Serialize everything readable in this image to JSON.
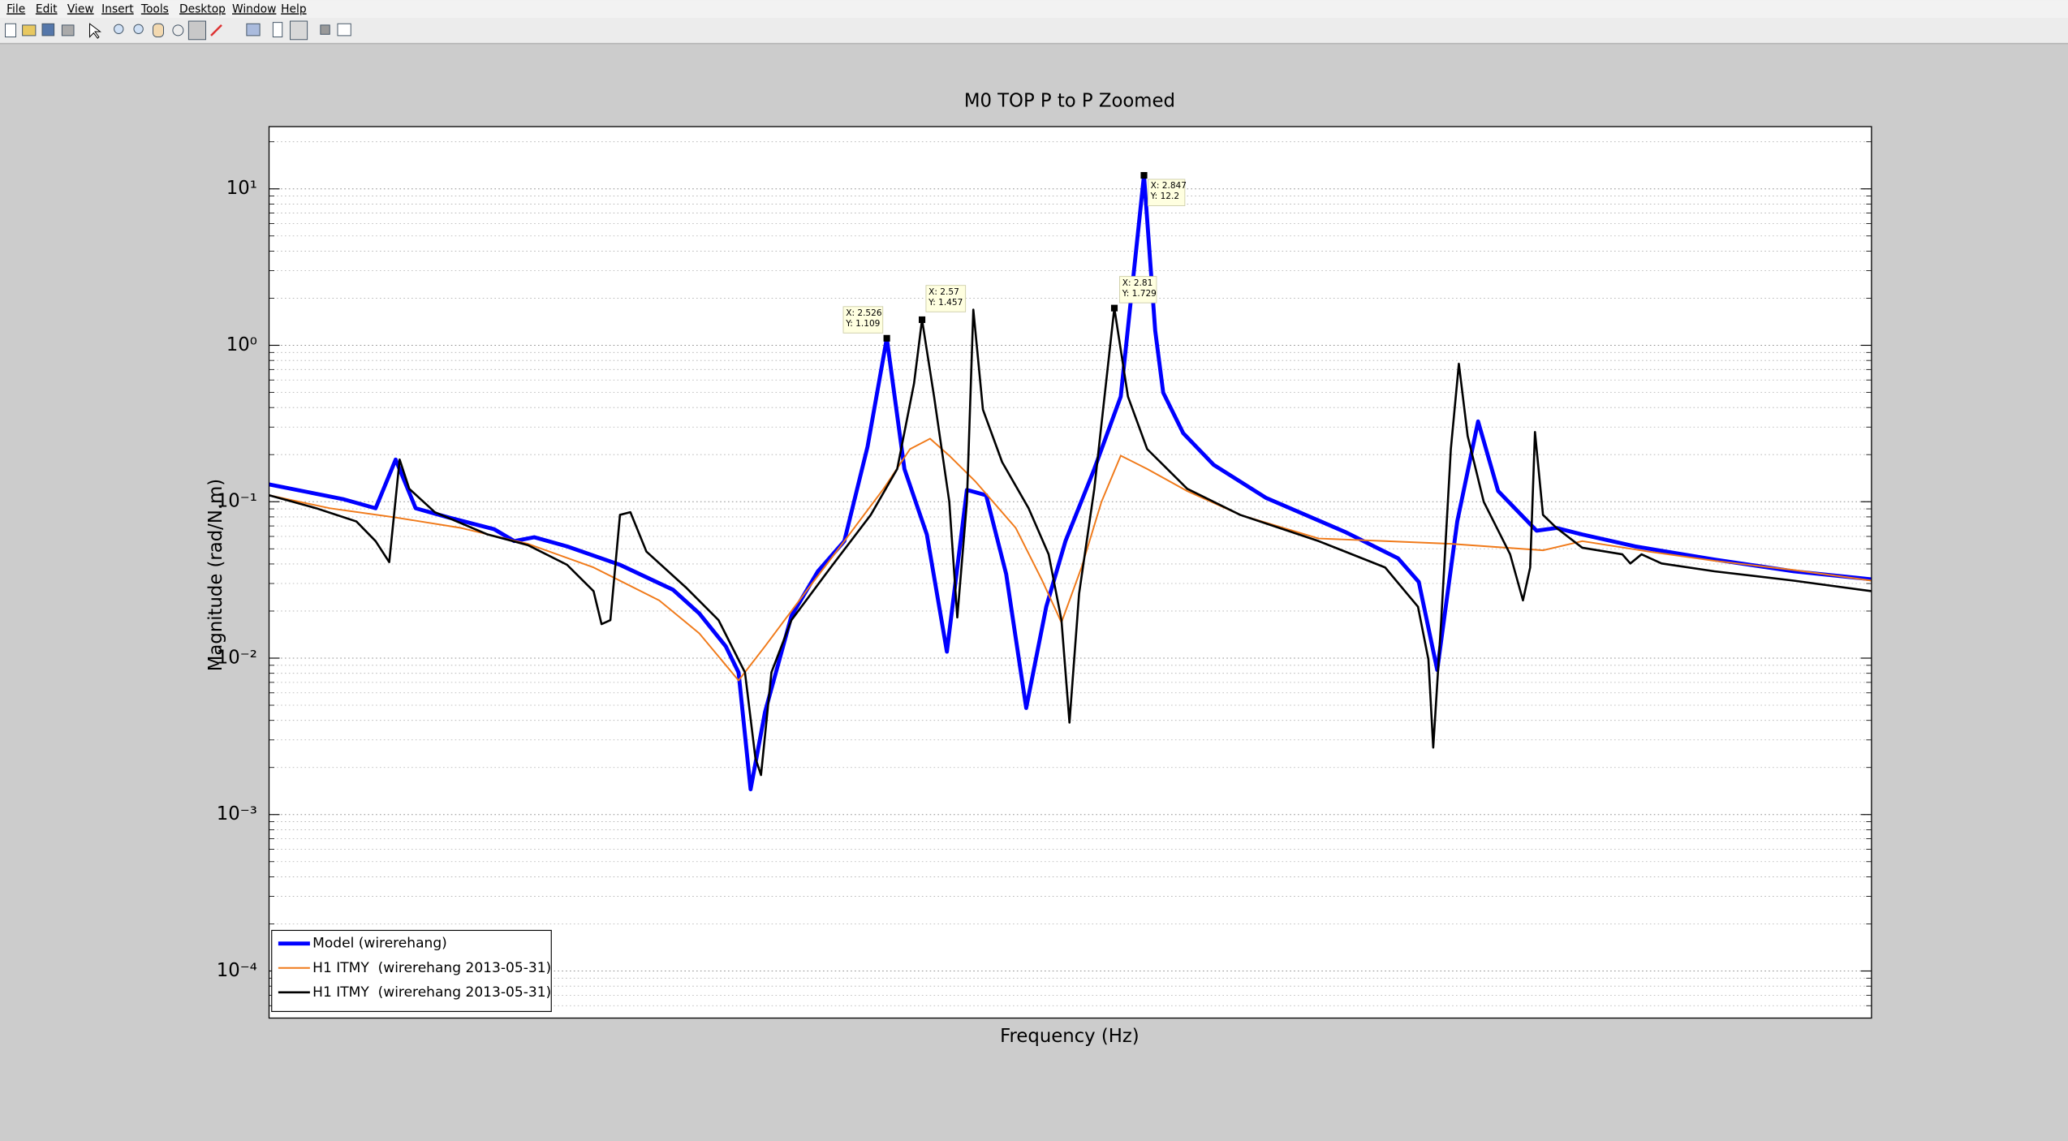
{
  "menu": [
    "File",
    "Edit",
    "View",
    "Insert",
    "Tools",
    "Desktop",
    "Window",
    "Help"
  ],
  "chart_data": {
    "type": "line",
    "title": "M0 TOP P to P Zoomed",
    "xlabel": "Frequency (Hz)",
    "ylabel": "Magnitude (rad/N.m)",
    "xlim": [
      1.755,
      3.755
    ],
    "ylim": [
      5e-05,
      25
    ],
    "ylog": true,
    "grid": true,
    "minor_grid": true,
    "legend": "lower left",
    "yticks": [
      {
        "value": 10,
        "label": "10¹"
      },
      {
        "value": 1,
        "label": "10⁰"
      },
      {
        "value": 0.1,
        "label": "10⁻¹"
      },
      {
        "value": 0.01,
        "label": "10⁻²"
      },
      {
        "value": 0.001,
        "label": "10⁻³"
      },
      {
        "value": 0.0001,
        "label": "10⁻⁴"
      }
    ],
    "series": [
      {
        "name": "Model (wirerehang)",
        "color": "#0000ff",
        "width": 3,
        "x": [
          1.755,
          1.847,
          1.888,
          1.913,
          1.938,
          1.979,
          2.036,
          2.061,
          2.086,
          2.127,
          2.193,
          2.259,
          2.292,
          2.325,
          2.341,
          2.356,
          2.374,
          2.407,
          2.44,
          2.473,
          2.502,
          2.526,
          2.548,
          2.576,
          2.601,
          2.626,
          2.65,
          2.675,
          2.7,
          2.725,
          2.749,
          2.785,
          2.818,
          2.847,
          2.861,
          2.871,
          2.896,
          2.934,
          2.999,
          3.098,
          3.164,
          3.19,
          3.213,
          3.238,
          3.264,
          3.289,
          3.337,
          3.362,
          3.394,
          3.46,
          3.559,
          3.658,
          3.755
        ],
        "values": [
          0.129,
          0.104,
          0.0908,
          0.186,
          0.0908,
          0.0793,
          0.0667,
          0.056,
          0.0593,
          0.0518,
          0.0395,
          0.0274,
          0.0193,
          0.0119,
          0.0081,
          0.00145,
          0.00452,
          0.0186,
          0.0359,
          0.056,
          0.225,
          1.109,
          0.162,
          0.0617,
          0.011,
          0.119,
          0.11,
          0.0345,
          0.0048,
          0.0213,
          0.056,
          0.162,
          0.47,
          12.2,
          1.24,
          0.498,
          0.274,
          0.172,
          0.106,
          0.0641,
          0.0435,
          0.0307,
          0.0084,
          0.0748,
          0.326,
          0.117,
          0.0653,
          0.0679,
          0.0617,
          0.0518,
          0.0427,
          0.0359,
          0.0319
        ]
      },
      {
        "name": "H1 ITMY  (wirerehang 2013-05-31)",
        "color": "#f07a1a",
        "width": 1.2,
        "x": [
          1.755,
          1.831,
          1.913,
          1.995,
          2.078,
          2.16,
          2.242,
          2.292,
          2.341,
          2.374,
          2.423,
          2.473,
          2.522,
          2.555,
          2.58,
          2.604,
          2.637,
          2.687,
          2.72,
          2.744,
          2.769,
          2.794,
          2.818,
          2.851,
          2.901,
          2.967,
          3.065,
          3.148,
          3.23,
          3.345,
          3.394,
          3.477,
          3.559,
          3.658,
          3.755
        ],
        "values": [
          0.11,
          0.0908,
          0.0793,
          0.0679,
          0.0538,
          0.038,
          0.0234,
          0.0144,
          0.0072,
          0.0119,
          0.0258,
          0.056,
          0.121,
          0.217,
          0.253,
          0.197,
          0.134,
          0.0679,
          0.0313,
          0.0169,
          0.038,
          0.1,
          0.197,
          0.162,
          0.117,
          0.0824,
          0.0582,
          0.056,
          0.0538,
          0.0489,
          0.056,
          0.048,
          0.0419,
          0.0366,
          0.0313
        ]
      },
      {
        "name": "H1 ITMY  (wirerehang 2013-05-31)",
        "color": "#000000",
        "width": 1.6,
        "x": [
          1.755,
          1.814,
          1.864,
          1.888,
          1.905,
          1.918,
          1.93,
          1.962,
          2.028,
          2.078,
          2.127,
          2.16,
          2.17,
          2.181,
          2.193,
          2.206,
          2.226,
          2.275,
          2.316,
          2.349,
          2.362,
          2.369,
          2.382,
          2.407,
          2.456,
          2.506,
          2.539,
          2.56,
          2.57,
          2.585,
          2.604,
          2.614,
          2.626,
          2.634,
          2.646,
          2.67,
          2.703,
          2.728,
          2.744,
          2.754,
          2.766,
          2.785,
          2.81,
          2.827,
          2.851,
          2.901,
          2.967,
          3.065,
          3.148,
          3.189,
          3.202,
          3.208,
          3.218,
          3.23,
          3.24,
          3.251,
          3.271,
          3.304,
          3.32,
          3.329,
          3.335,
          3.345,
          3.362,
          3.394,
          3.444,
          3.454,
          3.468,
          3.493,
          3.559,
          3.658,
          3.755
        ],
        "values": [
          0.11,
          0.0908,
          0.0748,
          0.056,
          0.0411,
          0.186,
          0.121,
          0.0857,
          0.0617,
          0.0528,
          0.0395,
          0.0268,
          0.0165,
          0.0175,
          0.0824,
          0.0857,
          0.048,
          0.0284,
          0.0175,
          0.0081,
          0.0023,
          0.00179,
          0.0081,
          0.0175,
          0.038,
          0.0824,
          0.162,
          0.57,
          1.457,
          0.47,
          0.1,
          0.0182,
          0.1,
          1.69,
          0.388,
          0.179,
          0.0908,
          0.0461,
          0.0175,
          0.00387,
          0.0258,
          0.121,
          1.729,
          0.47,
          0.217,
          0.121,
          0.0824,
          0.056,
          0.038,
          0.0213,
          0.0098,
          0.00268,
          0.0175,
          0.217,
          0.762,
          0.263,
          0.1,
          0.0461,
          0.0234,
          0.038,
          0.279,
          0.0824,
          0.0679,
          0.0508,
          0.0461,
          0.0403,
          0.0461,
          0.0403,
          0.0359,
          0.0313,
          0.0268
        ]
      }
    ],
    "data_tips": [
      {
        "x": 2.526,
        "y": 1.109,
        "text": [
          "X: 2.526",
          "Y: 1.109"
        ]
      },
      {
        "x": 2.57,
        "y": 1.457,
        "text": [
          "X: 2.57",
          "Y: 1.457"
        ]
      },
      {
        "x": 2.81,
        "y": 1.729,
        "text": [
          "X: 2.81",
          "Y: 1.729"
        ]
      },
      {
        "x": 2.847,
        "y": 12.2,
        "text": [
          "X: 2.847",
          "Y: 12.2"
        ]
      }
    ]
  }
}
